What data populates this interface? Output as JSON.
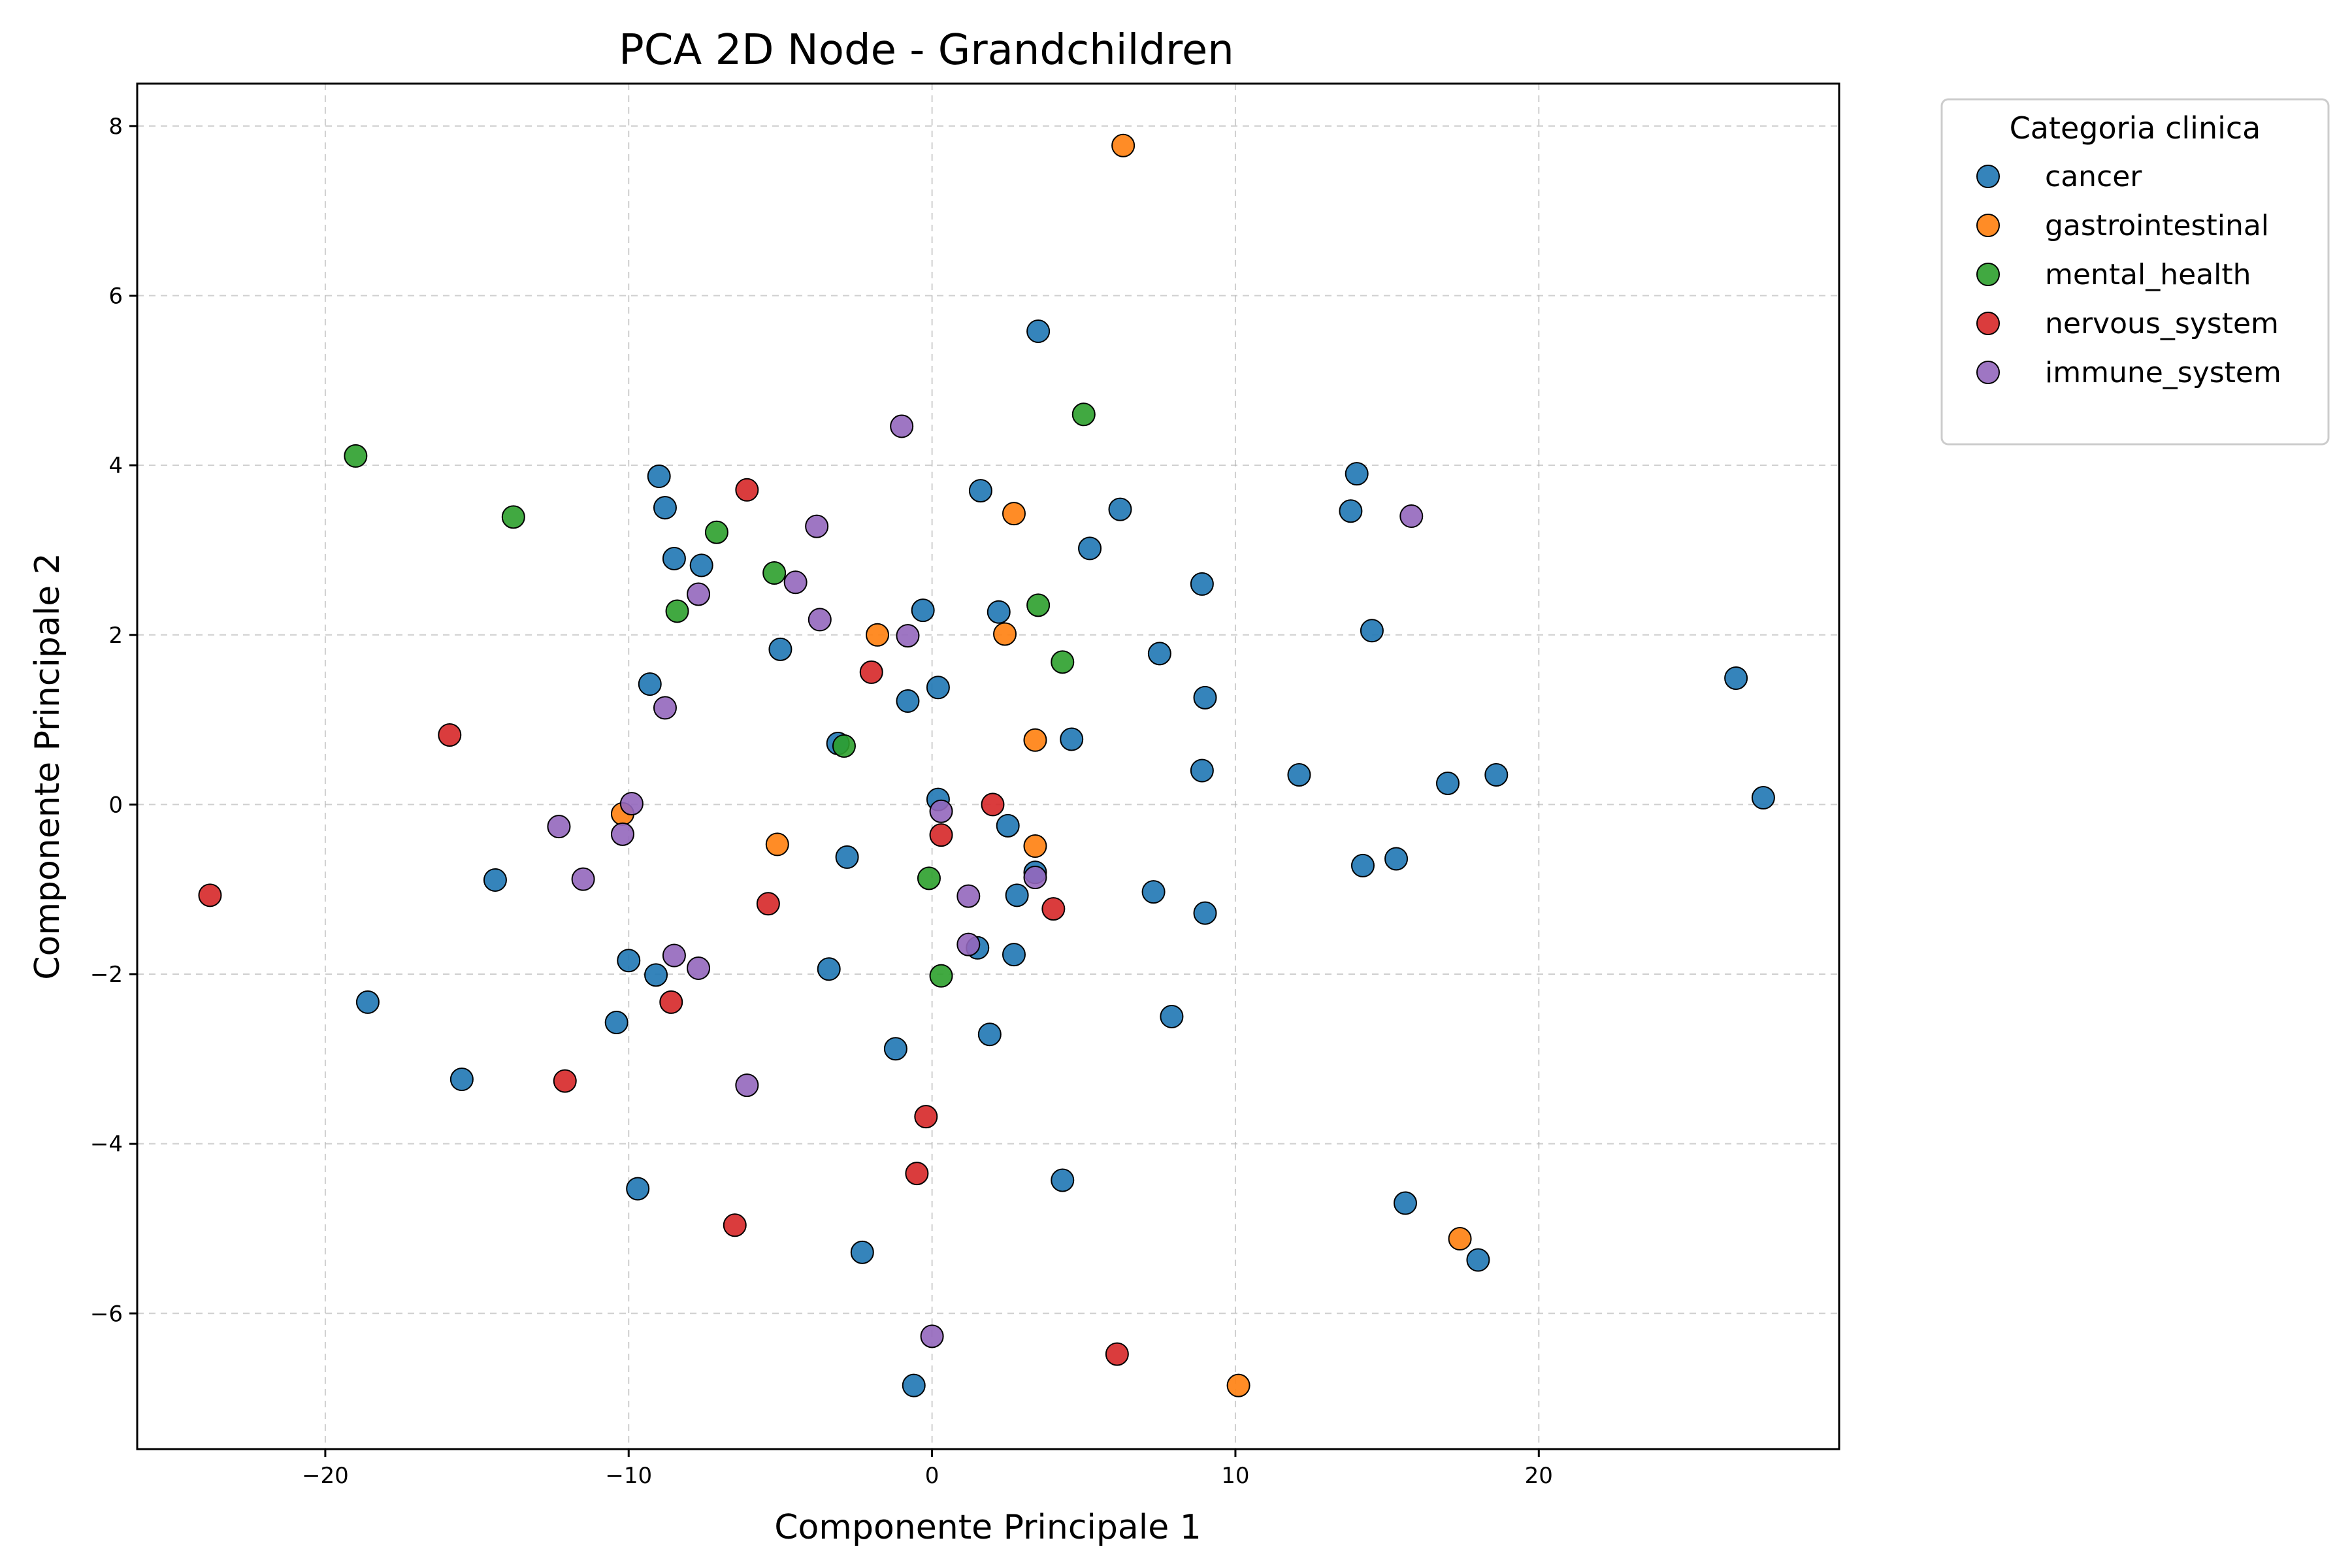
{
  "chart_data": {
    "type": "scatter",
    "title": "PCA 2D Node -  Grandchildren",
    "xlabel": "Componente Principale 1",
    "ylabel": "Componente Principale 2",
    "xlim": [
      -26.2,
      29.9
    ],
    "ylim": [
      -7.6,
      8.5
    ],
    "xticks": [
      -20,
      -10,
      0,
      10,
      20
    ],
    "yticks": [
      -6,
      -4,
      -2,
      0,
      2,
      4,
      6,
      8
    ],
    "xtick_labels": [
      "−20",
      "−10",
      "0",
      "10",
      "20"
    ],
    "ytick_labels": [
      "−6",
      "−4",
      "−2",
      "0",
      "2",
      "4",
      "6",
      "8"
    ],
    "grid": true,
    "legend": {
      "title": "Categoria clinica",
      "placement": "outside-upper-right"
    },
    "series": [
      {
        "name": "cancer",
        "color": "#1f77b4",
        "points": [
          [
            3.5,
            5.58
          ],
          [
            14,
            3.9
          ],
          [
            -9,
            3.87
          ],
          [
            1.6,
            3.7
          ],
          [
            -8.8,
            3.5
          ],
          [
            6.2,
            3.48
          ],
          [
            13.8,
            3.46
          ],
          [
            5.2,
            3.02
          ],
          [
            -8.5,
            2.9
          ],
          [
            -7.6,
            2.82
          ],
          [
            8.9,
            2.6
          ],
          [
            -0.3,
            2.29
          ],
          [
            2.2,
            2.27
          ],
          [
            14.5,
            2.05
          ],
          [
            -5,
            1.83
          ],
          [
            7.5,
            1.78
          ],
          [
            -9.3,
            1.42
          ],
          [
            0.2,
            1.38
          ],
          [
            9,
            1.26
          ],
          [
            -0.8,
            1.22
          ],
          [
            26.5,
            1.49
          ],
          [
            4.6,
            0.77
          ],
          [
            -3.1,
            0.72
          ],
          [
            8.9,
            0.4
          ],
          [
            12.1,
            0.35
          ],
          [
            18.6,
            0.35
          ],
          [
            17,
            0.25
          ],
          [
            27.4,
            0.08
          ],
          [
            0.2,
            0.06
          ],
          [
            2.5,
            -0.25
          ],
          [
            -2.8,
            -0.62
          ],
          [
            15.3,
            -0.64
          ],
          [
            14.2,
            -0.72
          ],
          [
            3.4,
            -0.8
          ],
          [
            -14.4,
            -0.89
          ],
          [
            7.3,
            -1.03
          ],
          [
            2.8,
            -1.07
          ],
          [
            9,
            -1.28
          ],
          [
            1.5,
            -1.69
          ],
          [
            2.7,
            -1.77
          ],
          [
            -10,
            -1.84
          ],
          [
            -9.1,
            -2.01
          ],
          [
            -3.4,
            -1.94
          ],
          [
            -18.6,
            -2.33
          ],
          [
            7.9,
            -2.5
          ],
          [
            -10.4,
            -2.57
          ],
          [
            1.9,
            -2.71
          ],
          [
            -1.2,
            -2.88
          ],
          [
            -15.5,
            -3.24
          ],
          [
            -9.7,
            -4.53
          ],
          [
            4.3,
            -4.43
          ],
          [
            15.6,
            -4.7
          ],
          [
            -2.3,
            -5.28
          ],
          [
            18,
            -5.37
          ],
          [
            -0.6,
            -6.85
          ]
        ]
      },
      {
        "name": "gastrointestinal",
        "color": "#ff7f0e",
        "points": [
          [
            6.3,
            7.77
          ],
          [
            2.7,
            3.43
          ],
          [
            -1.8,
            2
          ],
          [
            2.4,
            2.01
          ],
          [
            3.4,
            0.76
          ],
          [
            -10.2,
            -0.11
          ],
          [
            -5.1,
            -0.47
          ],
          [
            3.4,
            -0.49
          ],
          [
            17.4,
            -5.12
          ],
          [
            10.1,
            -6.85
          ]
        ]
      },
      {
        "name": "mental_health",
        "color": "#2ca02c",
        "points": [
          [
            -19,
            4.11
          ],
          [
            5,
            4.6
          ],
          [
            -13.8,
            3.39
          ],
          [
            -7.1,
            3.21
          ],
          [
            -5.2,
            2.73
          ],
          [
            3.5,
            2.35
          ],
          [
            -8.4,
            2.28
          ],
          [
            4.3,
            1.68
          ],
          [
            -2.9,
            0.69
          ],
          [
            -0.1,
            -0.87
          ],
          [
            0.3,
            -2.02
          ]
        ]
      },
      {
        "name": "nervous_system",
        "color": "#d62728",
        "points": [
          [
            -6.1,
            3.71
          ],
          [
            -2,
            1.56
          ],
          [
            -15.9,
            0.82
          ],
          [
            2,
            0
          ],
          [
            0.3,
            -0.36
          ],
          [
            -23.8,
            -1.07
          ],
          [
            -5.4,
            -1.17
          ],
          [
            4,
            -1.23
          ],
          [
            -8.6,
            -2.33
          ],
          [
            -12.1,
            -3.26
          ],
          [
            -0.2,
            -3.68
          ],
          [
            -0.5,
            -4.35
          ],
          [
            -6.5,
            -4.96
          ],
          [
            6.1,
            -6.48
          ]
        ]
      },
      {
        "name": "immune_system",
        "color": "#9467bd",
        "points": [
          [
            -1,
            4.46
          ],
          [
            15.8,
            3.4
          ],
          [
            -3.8,
            3.28
          ],
          [
            -4.5,
            2.62
          ],
          [
            -7.7,
            2.48
          ],
          [
            -3.7,
            2.18
          ],
          [
            -0.8,
            1.99
          ],
          [
            -8.8,
            1.14
          ],
          [
            -9.9,
            0.01
          ],
          [
            0.3,
            -0.08
          ],
          [
            -12.3,
            -0.26
          ],
          [
            -10.2,
            -0.35
          ],
          [
            -11.5,
            -0.88
          ],
          [
            3.4,
            -0.86
          ],
          [
            1.2,
            -1.08
          ],
          [
            1.2,
            -1.65
          ],
          [
            -8.5,
            -1.78
          ],
          [
            -7.7,
            -1.93
          ],
          [
            -6.1,
            -3.31
          ],
          [
            0,
            -6.27
          ]
        ]
      }
    ]
  }
}
